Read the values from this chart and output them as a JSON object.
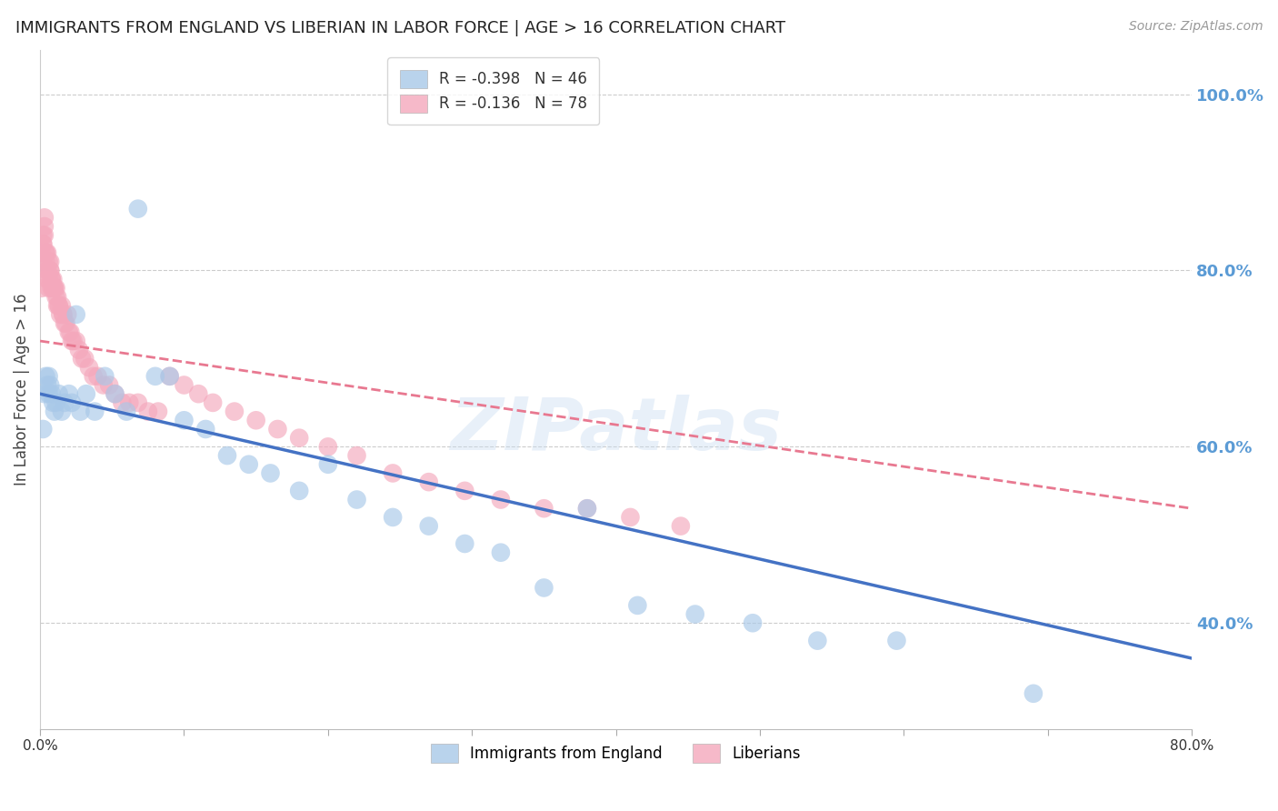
{
  "title": "IMMIGRANTS FROM ENGLAND VS LIBERIAN IN LABOR FORCE | AGE > 16 CORRELATION CHART",
  "source": "Source: ZipAtlas.com",
  "ylabel": "In Labor Force | Age > 16",
  "right_yticks": [
    1.0,
    0.8,
    0.6,
    0.4
  ],
  "right_yticklabels": [
    "100.0%",
    "80.0%",
    "60.0%",
    "40.0%"
  ],
  "england_R": -0.398,
  "england_N": 46,
  "liberia_R": -0.136,
  "liberia_N": 78,
  "england_color": "#a8c8e8",
  "liberia_color": "#f4a8bc",
  "england_line_color": "#4472c4",
  "liberia_line_color": "#e87890",
  "background_color": "#ffffff",
  "grid_color": "#cccccc",
  "title_color": "#333333",
  "right_axis_color": "#5b9bd5",
  "xlim": [
    0.0,
    0.8
  ],
  "ylim": [
    0.28,
    1.05
  ],
  "england_scatter_x": [
    0.002,
    0.003,
    0.004,
    0.005,
    0.006,
    0.006,
    0.007,
    0.008,
    0.009,
    0.01,
    0.011,
    0.013,
    0.015,
    0.017,
    0.02,
    0.022,
    0.025,
    0.028,
    0.032,
    0.038,
    0.045,
    0.052,
    0.06,
    0.068,
    0.08,
    0.09,
    0.1,
    0.115,
    0.13,
    0.145,
    0.16,
    0.18,
    0.2,
    0.22,
    0.245,
    0.27,
    0.295,
    0.32,
    0.35,
    0.38,
    0.415,
    0.455,
    0.495,
    0.54,
    0.595,
    0.69
  ],
  "england_scatter_y": [
    0.62,
    0.66,
    0.68,
    0.67,
    0.66,
    0.68,
    0.67,
    0.66,
    0.65,
    0.64,
    0.65,
    0.66,
    0.64,
    0.65,
    0.66,
    0.65,
    0.75,
    0.64,
    0.66,
    0.64,
    0.68,
    0.66,
    0.64,
    0.87,
    0.68,
    0.68,
    0.63,
    0.62,
    0.59,
    0.58,
    0.57,
    0.55,
    0.58,
    0.54,
    0.52,
    0.51,
    0.49,
    0.48,
    0.44,
    0.53,
    0.42,
    0.41,
    0.4,
    0.38,
    0.38,
    0.32
  ],
  "liberia_scatter_x": [
    0.001,
    0.001,
    0.002,
    0.002,
    0.002,
    0.003,
    0.003,
    0.003,
    0.004,
    0.004,
    0.004,
    0.005,
    0.005,
    0.005,
    0.005,
    0.006,
    0.006,
    0.006,
    0.007,
    0.007,
    0.007,
    0.008,
    0.008,
    0.008,
    0.009,
    0.009,
    0.01,
    0.01,
    0.011,
    0.011,
    0.012,
    0.012,
    0.013,
    0.013,
    0.014,
    0.015,
    0.016,
    0.016,
    0.017,
    0.018,
    0.019,
    0.02,
    0.021,
    0.022,
    0.023,
    0.025,
    0.027,
    0.029,
    0.031,
    0.034,
    0.037,
    0.04,
    0.044,
    0.048,
    0.052,
    0.057,
    0.062,
    0.068,
    0.075,
    0.082,
    0.09,
    0.1,
    0.11,
    0.12,
    0.135,
    0.15,
    0.165,
    0.18,
    0.2,
    0.22,
    0.245,
    0.27,
    0.295,
    0.32,
    0.35,
    0.38,
    0.41,
    0.445
  ],
  "liberia_scatter_y": [
    0.78,
    0.82,
    0.83,
    0.84,
    0.83,
    0.84,
    0.85,
    0.86,
    0.82,
    0.82,
    0.81,
    0.82,
    0.8,
    0.8,
    0.79,
    0.78,
    0.79,
    0.81,
    0.8,
    0.8,
    0.81,
    0.79,
    0.79,
    0.78,
    0.78,
    0.79,
    0.78,
    0.78,
    0.77,
    0.78,
    0.76,
    0.77,
    0.76,
    0.76,
    0.75,
    0.76,
    0.75,
    0.75,
    0.74,
    0.74,
    0.75,
    0.73,
    0.73,
    0.72,
    0.72,
    0.72,
    0.71,
    0.7,
    0.7,
    0.69,
    0.68,
    0.68,
    0.67,
    0.67,
    0.66,
    0.65,
    0.65,
    0.65,
    0.64,
    0.64,
    0.68,
    0.67,
    0.66,
    0.65,
    0.64,
    0.63,
    0.62,
    0.61,
    0.6,
    0.59,
    0.57,
    0.56,
    0.55,
    0.54,
    0.53,
    0.53,
    0.52,
    0.51
  ],
  "england_trend_x": [
    0.0,
    0.8
  ],
  "england_trend_y": [
    0.66,
    0.36
  ],
  "liberia_trend_x": [
    0.0,
    0.8
  ],
  "liberia_trend_y": [
    0.72,
    0.53
  ]
}
